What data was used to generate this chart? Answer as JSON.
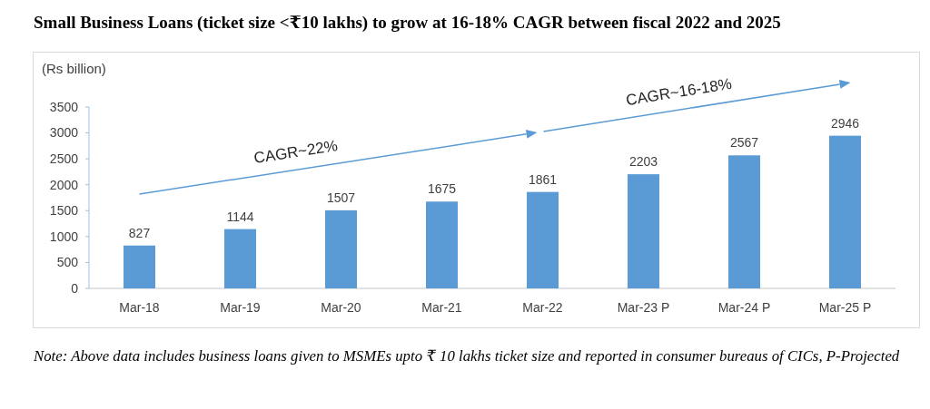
{
  "chart_data": {
    "type": "bar",
    "title": "Small Business Loans (ticket size <₹10 lakhs) to grow at 16-18% CAGR between fiscal 2022 and 2025",
    "ylabel": "(Rs billion)",
    "categories": [
      "Mar-18",
      "Mar-19",
      "Mar-20",
      "Mar-21",
      "Mar-22",
      "Mar-23 P",
      "Mar-24 P",
      "Mar-25 P"
    ],
    "values": [
      827,
      1144,
      1507,
      1675,
      1861,
      2203,
      2567,
      2946
    ],
    "color": "#5b9bd5",
    "ylim": [
      0,
      3500
    ],
    "yticks": [
      0,
      500,
      1000,
      1500,
      2000,
      2500,
      3000,
      3500
    ],
    "data_labels": true,
    "annotations": [
      "CAGR~22%",
      "CAGR~16-18%",
      "Note: Above data includes business loans given to MSMEs upto ₹ 10 lakhs ticket size and reported in consumer bureaus of CICs, P-Projected"
    ]
  }
}
